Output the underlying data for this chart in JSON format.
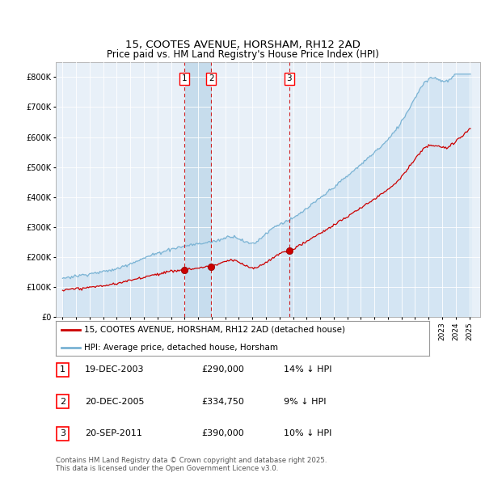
{
  "title": "15, COOTES AVENUE, HORSHAM, RH12 2AD",
  "subtitle": "Price paid vs. HM Land Registry's House Price Index (HPI)",
  "hpi_label": "HPI: Average price, detached house, Horsham",
  "property_label": "15, COOTES AVENUE, HORSHAM, RH12 2AD (detached house)",
  "hpi_color": "#7ab3d4",
  "hpi_fill_color": "#c8dff0",
  "property_color": "#cc0000",
  "vline_color": "#cc0000",
  "bg_color": "#e8f0f8",
  "highlight_color": "#c8dff0",
  "transactions": [
    {
      "id": 1,
      "date": "19-DEC-2003",
      "price": 290000,
      "pct": "14%",
      "x_year": 2003.97
    },
    {
      "id": 2,
      "date": "20-DEC-2005",
      "price": 334750,
      "pct": "9%",
      "x_year": 2005.97
    },
    {
      "id": 3,
      "date": "20-SEP-2011",
      "price": 390000,
      "pct": "10%",
      "x_year": 2011.72
    }
  ],
  "footnote1": "Contains HM Land Registry data © Crown copyright and database right 2025.",
  "footnote2": "This data is licensed under the Open Government Licence v3.0.",
  "ylim": [
    0,
    850000
  ],
  "xlim_start": 1994.5,
  "xlim_end": 2025.8
}
